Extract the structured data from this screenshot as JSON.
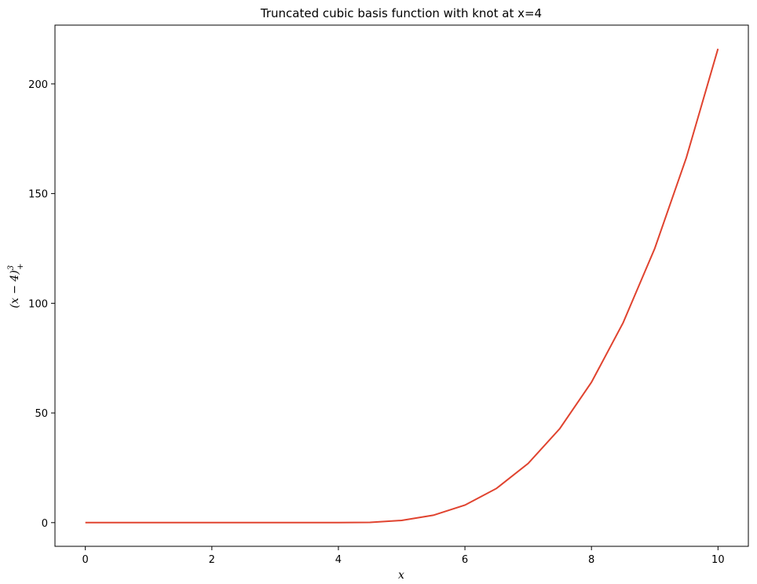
{
  "chart_data": {
    "type": "line",
    "title": "Truncated cubic basis function with knot at x=4",
    "xlabel": "x",
    "ylabel": "(x − 4)",
    "ylabel_sup": "3",
    "ylabel_sub": "+",
    "xlim": [
      -0.48,
      10.48
    ],
    "ylim": [
      -10.8,
      226.8
    ],
    "xticks": [
      0,
      2,
      4,
      6,
      8,
      10
    ],
    "yticks": [
      0,
      50,
      100,
      150,
      200
    ],
    "knot": 4,
    "grid": false,
    "series": [
      {
        "color": "#e0432f",
        "x": [
          0,
          1,
          2,
          3,
          4,
          4.5,
          5,
          5.5,
          6,
          6.5,
          7,
          7.5,
          8,
          8.5,
          9,
          9.5,
          10
        ],
        "y": [
          0,
          0,
          0,
          0,
          0,
          0.125,
          1,
          3.375,
          8,
          15.625,
          27,
          42.875,
          64,
          91.125,
          125,
          166.375,
          216
        ]
      }
    ]
  }
}
